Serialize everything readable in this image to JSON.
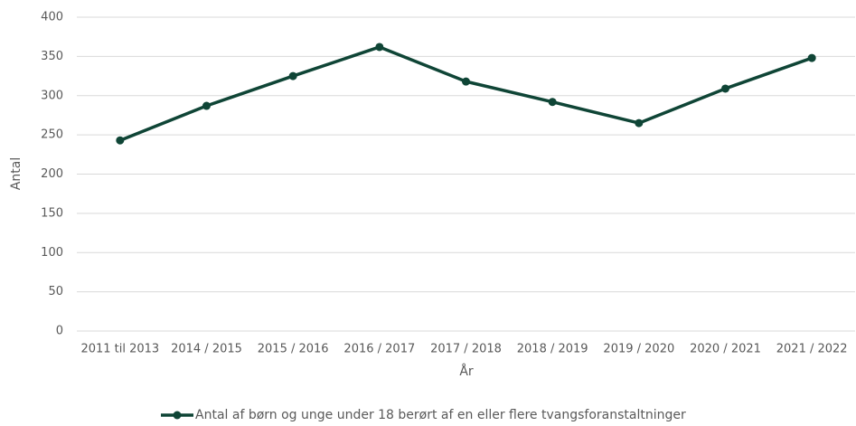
{
  "chart_data": {
    "type": "line",
    "categories": [
      "2011 til 2013",
      "2014 / 2015",
      "2015 / 2016",
      "2016 / 2017",
      "2017 / 2018",
      "2018 / 2019",
      "2019 / 2020",
      "2020 / 2021",
      "2021 / 2022"
    ],
    "series": [
      {
        "name": "Antal af børn og unge under 18 berørt af en eller flere tvangsforanstaltninger",
        "color": "#0f4536",
        "values": [
          243,
          287,
          325,
          362,
          318,
          292,
          265,
          309,
          348
        ]
      }
    ],
    "xlabel": "År",
    "ylabel": "Antal",
    "ylim": [
      0,
      400
    ],
    "yticks": [
      0,
      50,
      100,
      150,
      200,
      250,
      300,
      350,
      400
    ],
    "grid": true,
    "legend": "bottom"
  }
}
